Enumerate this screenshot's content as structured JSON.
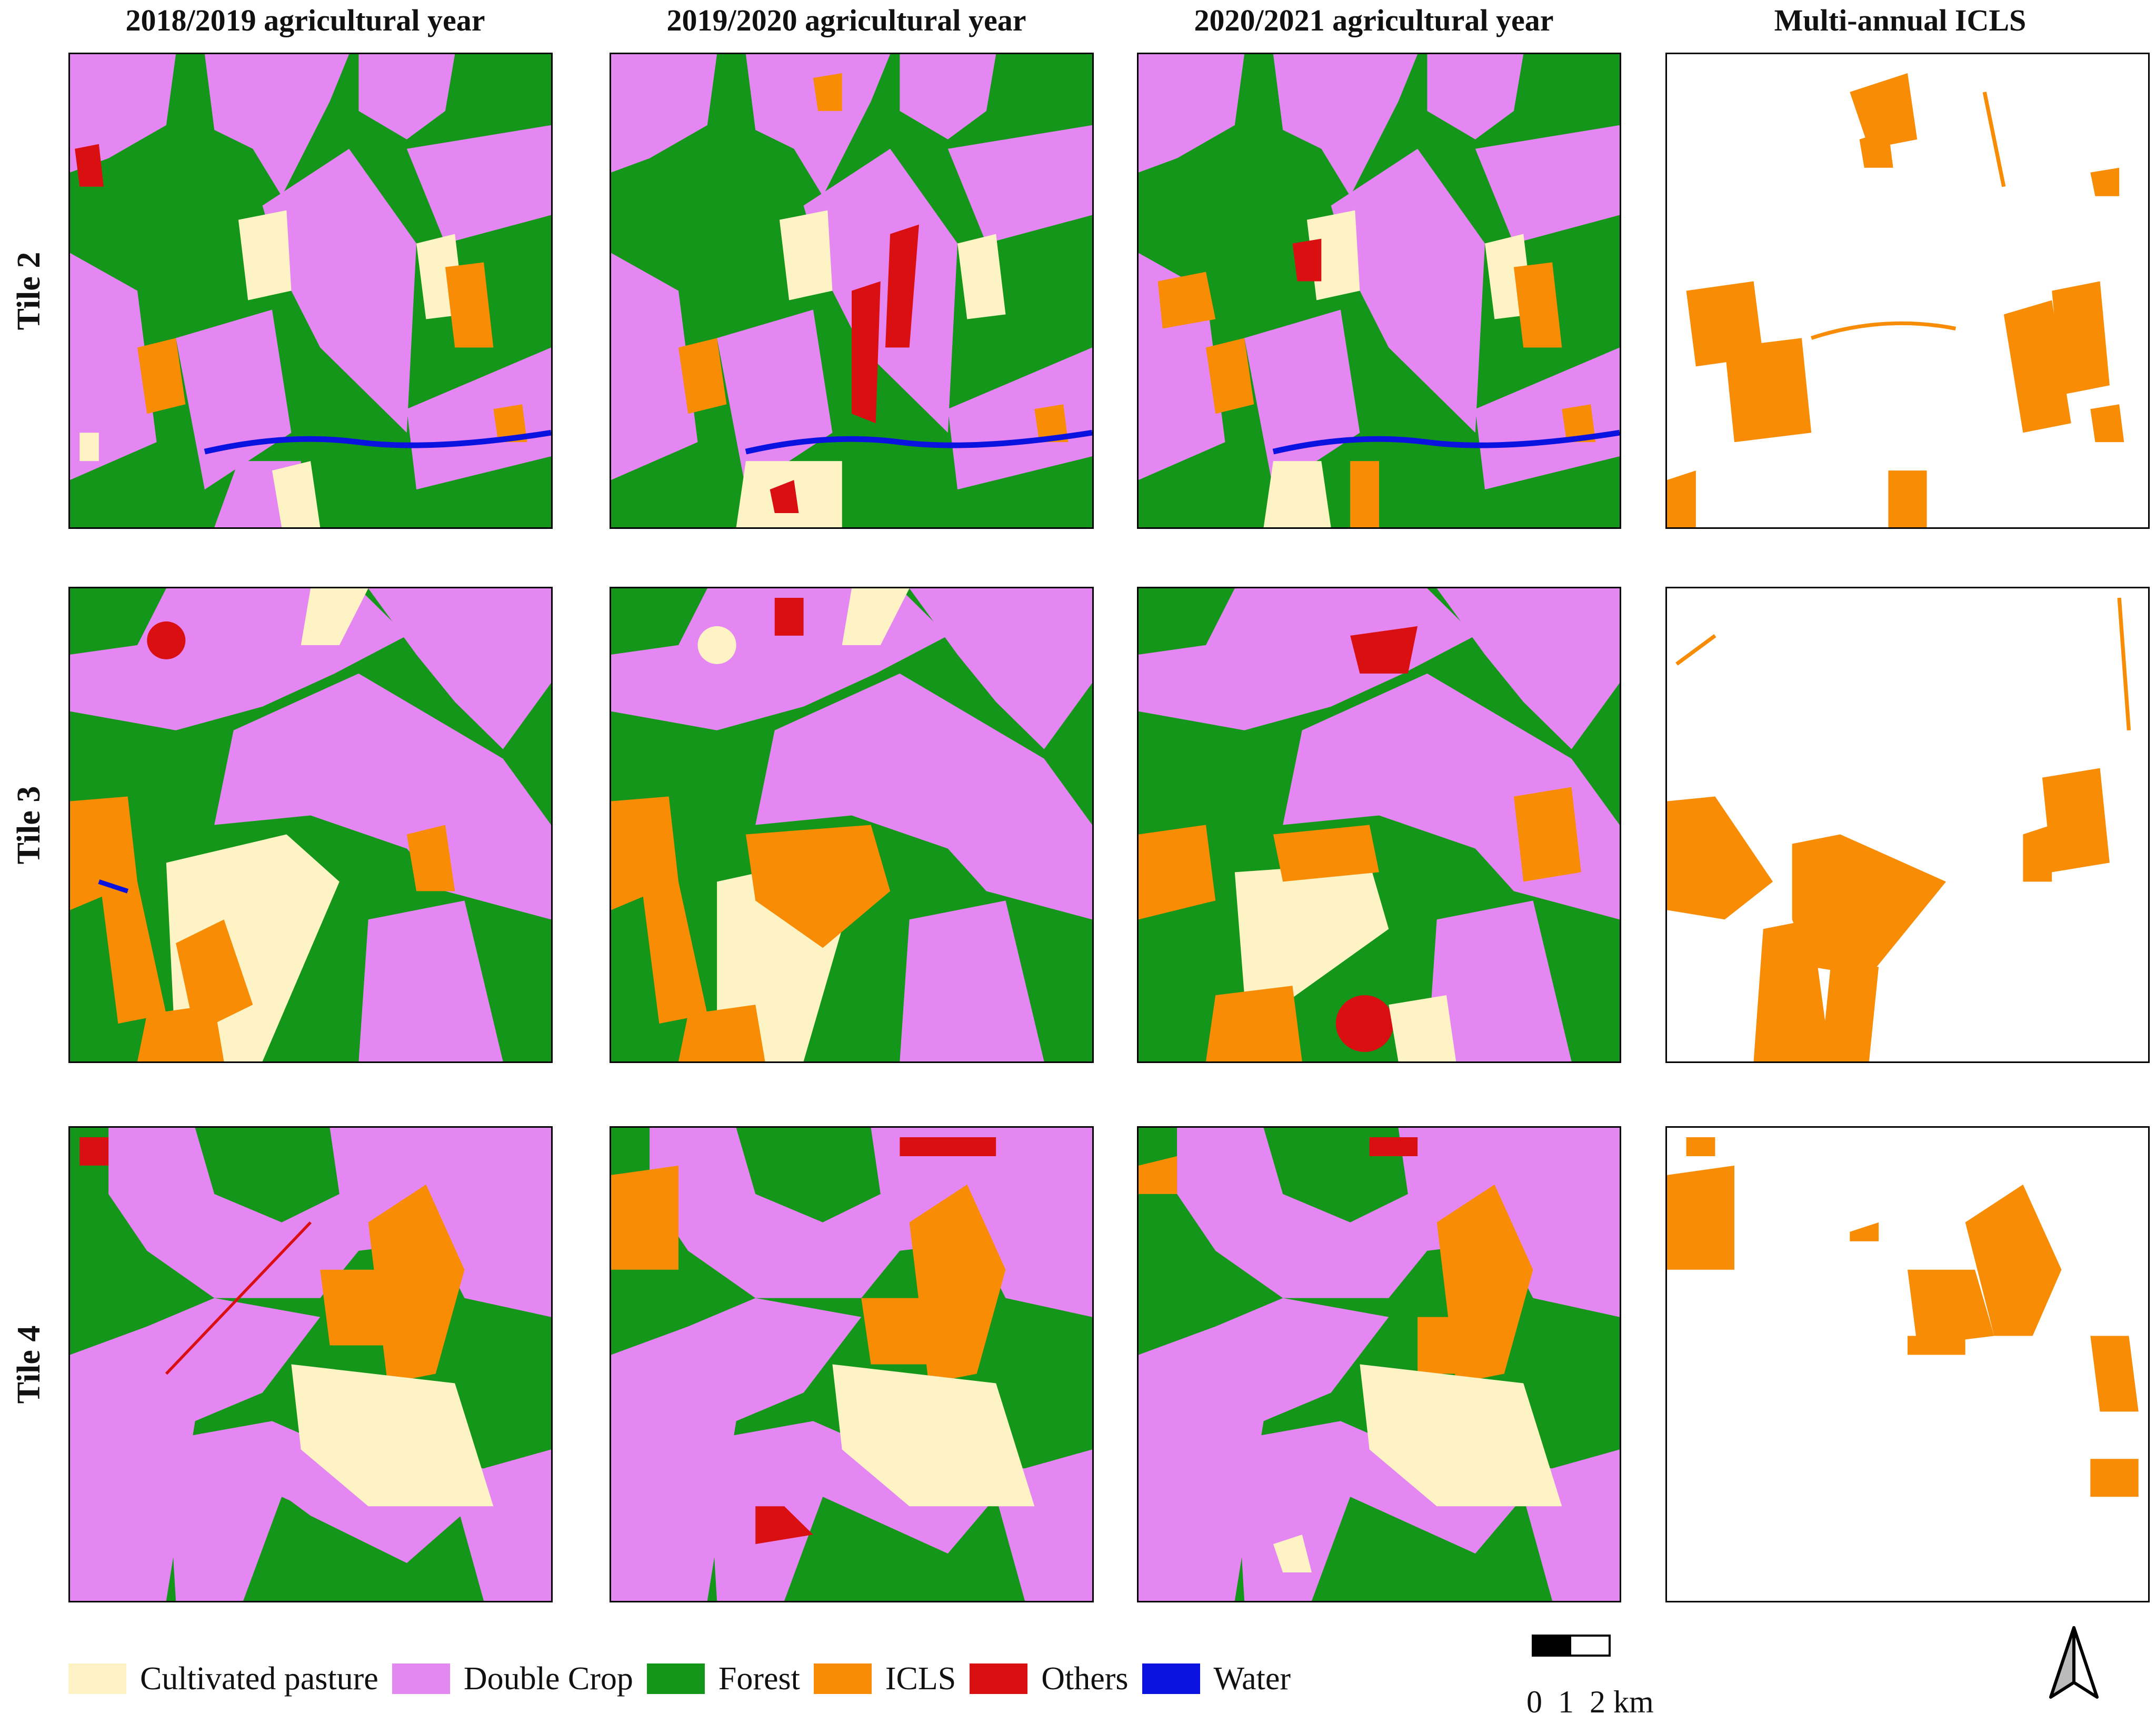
{
  "column_headers": [
    "2018/2019 agricultural year",
    "2019/2020 agricultural year",
    "2020/2021 agricultural year",
    "Multi-annual ICLS"
  ],
  "row_labels": [
    "Tile 2",
    "Tile 3",
    "Tile 4"
  ],
  "legend": [
    {
      "label": "Cultivated pasture",
      "color": "#fdf3c4"
    },
    {
      "label": "Double Crop",
      "color": "#e587f2"
    },
    {
      "label": "Forest",
      "color": "#14961a"
    },
    {
      "label": "ICLS",
      "color": "#f88c05"
    },
    {
      "label": "Others",
      "color": "#d90f12"
    },
    {
      "label": "Water",
      "color": "#0a12e0"
    }
  ],
  "scale_bar": {
    "labels": "0  1  2 km"
  },
  "north_arrow": {
    "icon": "north-arrow-icon"
  }
}
